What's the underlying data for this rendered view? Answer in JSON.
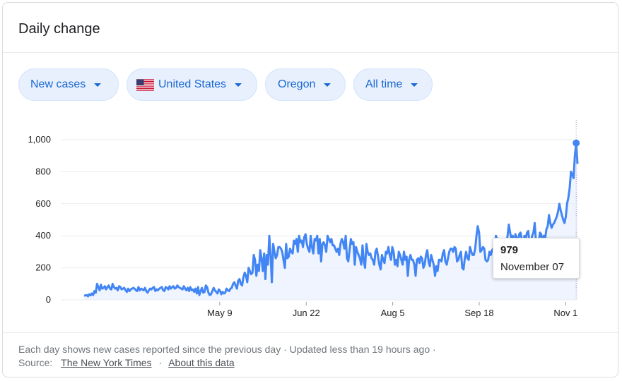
{
  "card": {
    "title": "Daily change"
  },
  "filters": [
    {
      "label": "New cases"
    },
    {
      "label": "United States",
      "flag": "us-flag-icon"
    },
    {
      "label": "Oregon"
    },
    {
      "label": "All time"
    }
  ],
  "tooltip": {
    "value": "979",
    "date": "November 07"
  },
  "footer": {
    "note": "Each day shows new cases reported since the previous day · Updated less than 19 hours ago ·",
    "source_label": "Source:",
    "source_link": "The New York Times",
    "separator": "·",
    "about_link": "About this data"
  },
  "colors": {
    "line": "#4285f4",
    "area": "#e8f0fe",
    "accent": "#1967d2"
  },
  "chart_data": {
    "type": "area",
    "title": "",
    "xlabel": "",
    "ylabel": "",
    "ylim": [
      0,
      1000
    ],
    "y_ticks": [
      0,
      200,
      400,
      600,
      800,
      1000
    ],
    "y_tick_labels": [
      "0",
      "200",
      "400",
      "600",
      "800",
      "1,000"
    ],
    "x_tick_labels": [
      "May 9",
      "Jun 22",
      "Aug 5",
      "Sep 18",
      "Nov 1"
    ],
    "x_ticks": [
      "2020-05-09",
      "2020-06-22",
      "2020-08-05",
      "2020-09-18",
      "2020-11-01"
    ],
    "grid": true,
    "x_start": "2020-03-01",
    "x_end": "2020-11-07",
    "series": [
      {
        "values": [
          25,
          28,
          30,
          22,
          35,
          28,
          40,
          30,
          55,
          45,
          100,
          80,
          60,
          95,
          70,
          75,
          85,
          65,
          80,
          90,
          70,
          65,
          100,
          80,
          70,
          75,
          60,
          85,
          80,
          65,
          70,
          75,
          60,
          50,
          70,
          55,
          65,
          70,
          75,
          70,
          60,
          55,
          80,
          60,
          70,
          65,
          60,
          75,
          55,
          45,
          60,
          70,
          65,
          75,
          80,
          55,
          65,
          60,
          70,
          75,
          80,
          60,
          55,
          80,
          75,
          65,
          85,
          70,
          80,
          85,
          70,
          75,
          90,
          80,
          75,
          70,
          65,
          85,
          70,
          60,
          75,
          55,
          80,
          60,
          65,
          50,
          70,
          40,
          80,
          30,
          55,
          75,
          45,
          50,
          90,
          80,
          45,
          30,
          35,
          55,
          75,
          60,
          50,
          40,
          65,
          55,
          35,
          50,
          40,
          45,
          70,
          60,
          55,
          70,
          75,
          100,
          110,
          90,
          70,
          120,
          130,
          100,
          90,
          140,
          170,
          150,
          110,
          200,
          180,
          160,
          170,
          280,
          250,
          150,
          220,
          180,
          310,
          260,
          180,
          290,
          130,
          280,
          220,
          400,
          280,
          110,
          350,
          300,
          260,
          280,
          330,
          330,
          320,
          300,
          250,
          200,
          350,
          260,
          270,
          320,
          300,
          290,
          370,
          350,
          380,
          300,
          400,
          360,
          370,
          330,
          390,
          410,
          350,
          320,
          300,
          400,
          330,
          290,
          380,
          370,
          400,
          290,
          380,
          240,
          350,
          360,
          340,
          300,
          400,
          380,
          360,
          380,
          340,
          340,
          320,
          300,
          320,
          280,
          350,
          380,
          360,
          320,
          400,
          260,
          240,
          310,
          380,
          350,
          360,
          220,
          330,
          300,
          280,
          260,
          220,
          340,
          240,
          200,
          350,
          300,
          280,
          290,
          260,
          250,
          220,
          300,
          320,
          270,
          220,
          190,
          280,
          250,
          230,
          300,
          290,
          330,
          280,
          250,
          330,
          300,
          220,
          250,
          210,
          300,
          280,
          250,
          220,
          300,
          250,
          270,
          150,
          250,
          280,
          250,
          250,
          220,
          150,
          250,
          260,
          230,
          270,
          260,
          200,
          220,
          280,
          310,
          240,
          210,
          280,
          250,
          220,
          150,
          210,
          180,
          250,
          250,
          240,
          290,
          310,
          240,
          220,
          260,
          300,
          320,
          320,
          300,
          330,
          320,
          240,
          250,
          280,
          300,
          200,
          190,
          260,
          300,
          260,
          250,
          330,
          300,
          280,
          280,
          320,
          400,
          460,
          420,
          300,
          310,
          330,
          320,
          250,
          240,
          250,
          300,
          280,
          310,
          320,
          340,
          400,
          380,
          300,
          320,
          360,
          300,
          320,
          330,
          350,
          400,
          470,
          420,
          380,
          400,
          310,
          410,
          390,
          350,
          410,
          420,
          380,
          300,
          400,
          380,
          420,
          430,
          350,
          360,
          400,
          420,
          480,
          360,
          380,
          350,
          420,
          410,
          360,
          400,
          380,
          440,
          460,
          530,
          480,
          450,
          470,
          480,
          500,
          520,
          550,
          600,
          560,
          530,
          500,
          480,
          520,
          600,
          640,
          700,
          800,
          780,
          760,
          900,
          979,
          850
        ]
      }
    ]
  }
}
